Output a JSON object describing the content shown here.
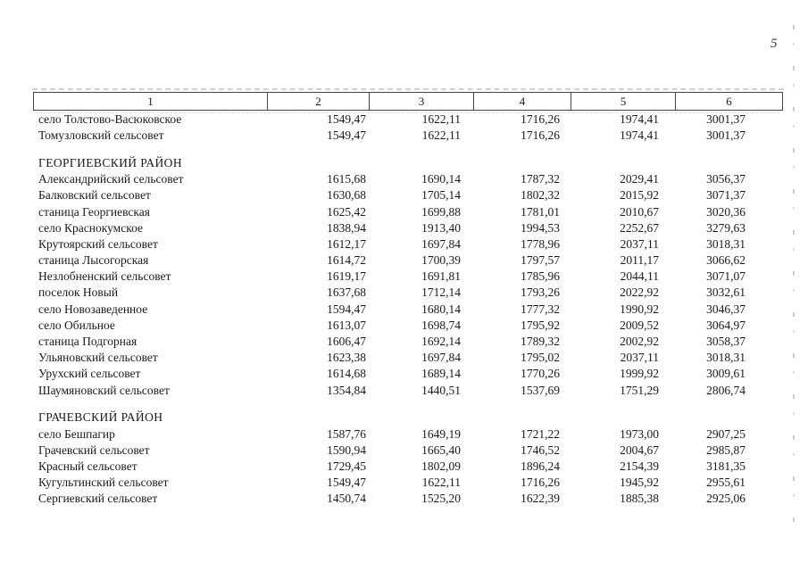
{
  "page": {
    "number": "5"
  },
  "table": {
    "columns": [
      "1",
      "2",
      "3",
      "4",
      "5",
      "6"
    ],
    "rows": [
      {
        "type": "data",
        "name": "село Толстово-Васюковское",
        "values": [
          "1549,47",
          "1622,11",
          "1716,26",
          "1974,41",
          "3001,37"
        ]
      },
      {
        "type": "data",
        "name": "Томузловский сельсовет",
        "values": [
          "1549,47",
          "1622,11",
          "1716,26",
          "1974,41",
          "3001,37"
        ]
      },
      {
        "type": "spacer"
      },
      {
        "type": "section",
        "name": "ГЕОРГИЕВСКИЙ РАЙОН"
      },
      {
        "type": "data",
        "name": "Александрийский сельсовет",
        "values": [
          "1615,68",
          "1690,14",
          "1787,32",
          "2029,41",
          "3056,37"
        ]
      },
      {
        "type": "data",
        "name": "Балковский сельсовет",
        "values": [
          "1630,68",
          "1705,14",
          "1802,32",
          "2015,92",
          "3071,37"
        ]
      },
      {
        "type": "data",
        "name": "станица Георгиевская",
        "values": [
          "1625,42",
          "1699,88",
          "1781,01",
          "2010,67",
          "3020,36"
        ]
      },
      {
        "type": "data",
        "name": "село Краснокумское",
        "values": [
          "1838,94",
          "1913,40",
          "1994,53",
          "2252,67",
          "3279,63"
        ]
      },
      {
        "type": "data",
        "name": "Крутоярский сельсовет",
        "values": [
          "1612,17",
          "1697,84",
          "1778,96",
          "2037,11",
          "3018,31"
        ]
      },
      {
        "type": "data",
        "name": "станица Лысогорская",
        "values": [
          "1614,72",
          "1700,39",
          "1797,57",
          "2011,17",
          "3066,62"
        ]
      },
      {
        "type": "data",
        "name": "Незлобненский сельсовет",
        "values": [
          "1619,17",
          "1691,81",
          "1785,96",
          "2044,11",
          "3071,07"
        ]
      },
      {
        "type": "data",
        "name": "поселок Новый",
        "values": [
          "1637,68",
          "1712,14",
          "1793,26",
          "2022,92",
          "3032,61"
        ]
      },
      {
        "type": "data",
        "name": "село Новозаведенное",
        "values": [
          "1594,47",
          "1680,14",
          "1777,32",
          "1990,92",
          "3046,37"
        ]
      },
      {
        "type": "data",
        "name": "село Обильное",
        "values": [
          "1613,07",
          "1698,74",
          "1795,92",
          "2009,52",
          "3064,97"
        ]
      },
      {
        "type": "data",
        "name": "станица Подгорная",
        "values": [
          "1606,47",
          "1692,14",
          "1789,32",
          "2002,92",
          "3058,37"
        ]
      },
      {
        "type": "data",
        "name": "Ульяновский сельсовет",
        "values": [
          "1623,38",
          "1697,84",
          "1795,02",
          "2037,11",
          "3018,31"
        ]
      },
      {
        "type": "data",
        "name": "Урухский сельсовет",
        "values": [
          "1614,68",
          "1689,14",
          "1770,26",
          "1999,92",
          "3009,61"
        ]
      },
      {
        "type": "data",
        "name": "Шаумяновский сельсовет",
        "values": [
          "1354,84",
          "1440,51",
          "1537,69",
          "1751,29",
          "2806,74"
        ]
      },
      {
        "type": "spacer"
      },
      {
        "type": "section",
        "name": "ГРАЧЕВСКИЙ РАЙОН"
      },
      {
        "type": "data",
        "name": "село Бешпагир",
        "values": [
          "1587,76",
          "1649,19",
          "1721,22",
          "1973,00",
          "2907,25"
        ]
      },
      {
        "type": "data",
        "name": "Грачевский сельсовет",
        "values": [
          "1590,94",
          "1665,40",
          "1746,52",
          "2004,67",
          "2985,87"
        ]
      },
      {
        "type": "data",
        "name": "Красный сельсовет",
        "values": [
          "1729,45",
          "1802,09",
          "1896,24",
          "2154,39",
          "3181,35"
        ]
      },
      {
        "type": "data",
        "name": "Кугультинский сельсовет",
        "values": [
          "1549,47",
          "1622,11",
          "1716,26",
          "1945,92",
          "2955,61"
        ]
      },
      {
        "type": "data",
        "name": "Сергиевский сельсовет",
        "values": [
          "1450,74",
          "1525,20",
          "1622,39",
          "1885,38",
          "2925,06"
        ]
      }
    ]
  }
}
